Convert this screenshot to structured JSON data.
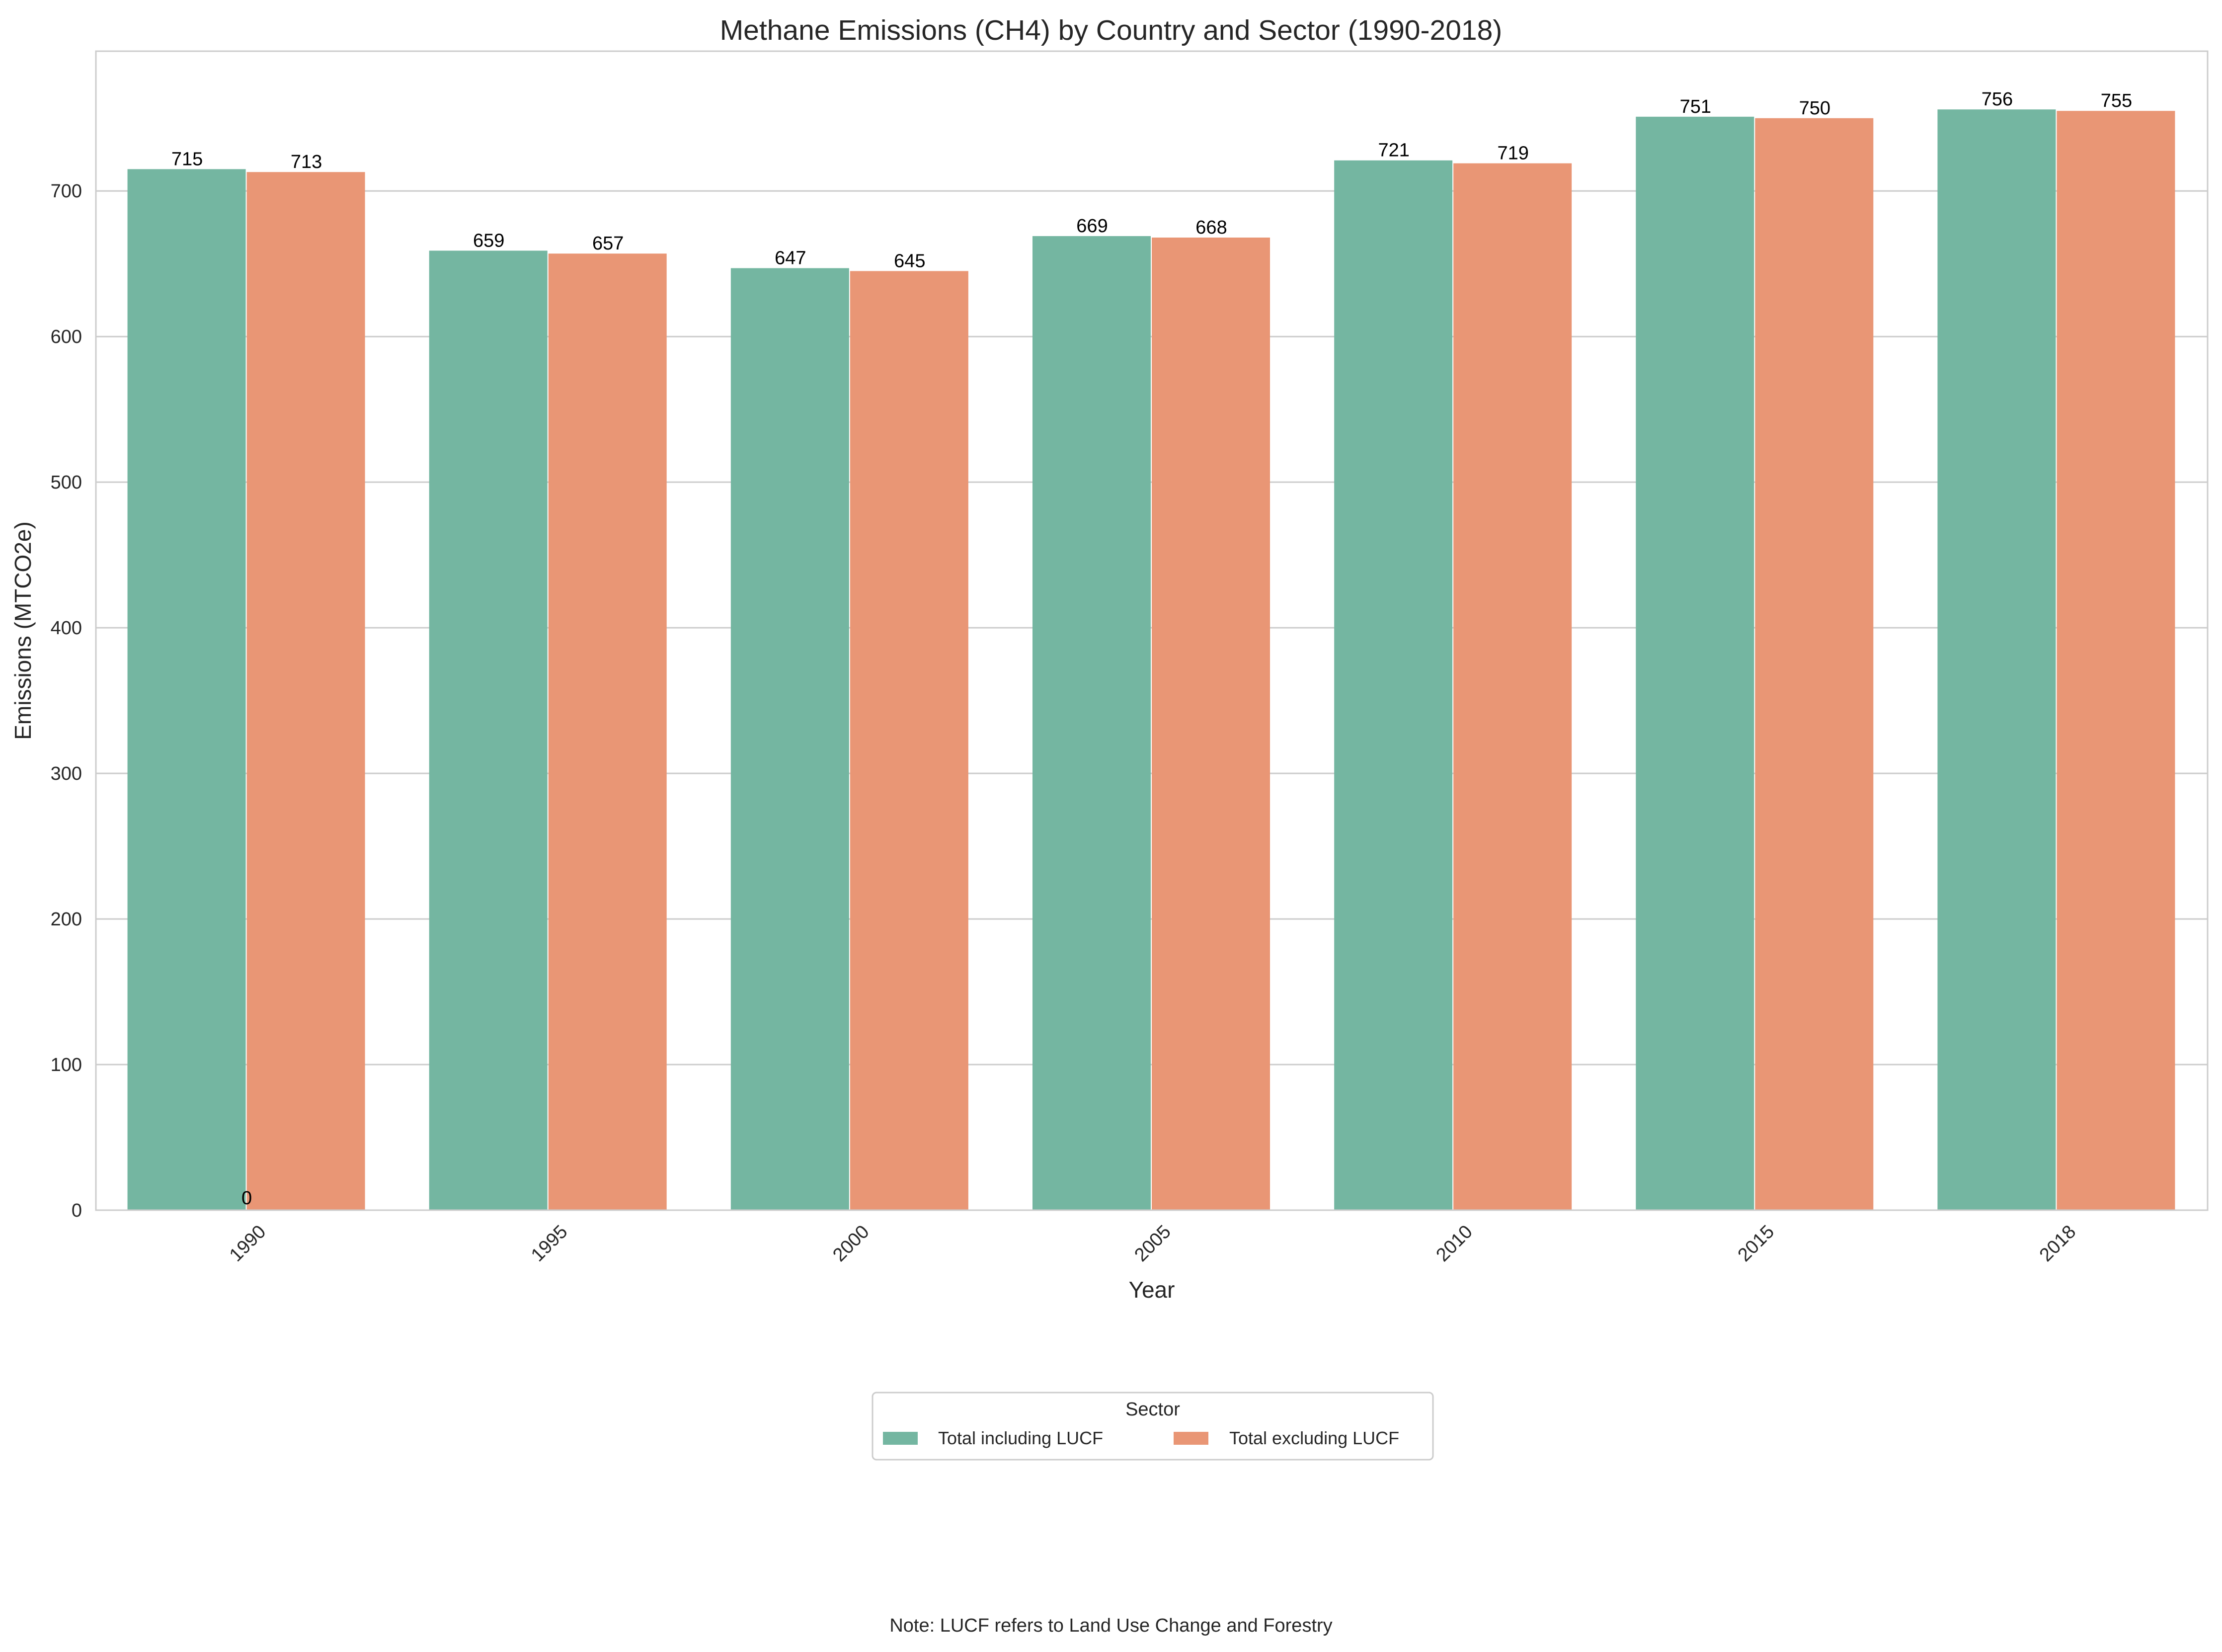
{
  "chart_data": {
    "type": "bar",
    "title": "Methane Emissions (CH4) by Country and Sector (1990-2018)",
    "xlabel": "Year",
    "ylabel": "Emissions (MTCO2e)",
    "categories": [
      "1990",
      "1995",
      "2000",
      "2005",
      "2010",
      "2015",
      "2018"
    ],
    "series": [
      {
        "name": "Total including LUCF",
        "color": "#74b6a1",
        "values": [
          715,
          659,
          647,
          669,
          721,
          751,
          756
        ]
      },
      {
        "name": "Total excluding LUCF",
        "color": "#e99675",
        "values": [
          713,
          657,
          645,
          668,
          719,
          750,
          755
        ]
      }
    ],
    "yticks": [
      0,
      100,
      200,
      300,
      400,
      500,
      600,
      700
    ],
    "ylim": [
      0,
      796
    ],
    "grid": true,
    "legend": {
      "title": "Sector",
      "placement": "bottom-center"
    },
    "annotations": [
      {
        "text": "0",
        "category": "1990"
      }
    ]
  },
  "note": "Note: LUCF refers to Land Use Change and Forestry"
}
